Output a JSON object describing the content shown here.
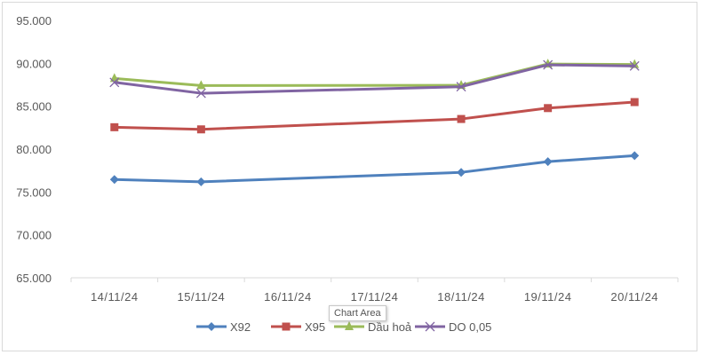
{
  "chart_data": {
    "type": "line",
    "title": "",
    "xlabel": "",
    "ylabel": "",
    "categories": [
      "14/11/24",
      "15/11/24",
      "16/11/24",
      "17/11/24",
      "18/11/24",
      "19/11/24",
      "20/11/24"
    ],
    "ylim": [
      65000,
      95000
    ],
    "yticks": [
      "65.000",
      "70.000",
      "75.000",
      "80.000",
      "85.000",
      "90.000",
      "95.000"
    ],
    "grid": false,
    "legend": "bottom",
    "series": [
      {
        "name": "X92",
        "color": "#4f81bd",
        "marker": "diamond",
        "values": [
          76460,
          76180,
          null,
          null,
          77290,
          78540,
          79240
        ]
      },
      {
        "name": "X95",
        "color": "#c0504d",
        "marker": "square",
        "values": [
          82550,
          82300,
          null,
          null,
          83510,
          84780,
          85480
        ]
      },
      {
        "name": "Dầu hoả",
        "color": "#9bbb59",
        "marker": "triangle",
        "values": [
          88240,
          87410,
          null,
          null,
          87440,
          89920,
          89860
        ]
      },
      {
        "name": "DO 0,05",
        "color": "#8064a2",
        "marker": "x",
        "values": [
          87780,
          86510,
          null,
          null,
          87270,
          89820,
          89690
        ]
      }
    ]
  },
  "tooltip": "Chart Area"
}
